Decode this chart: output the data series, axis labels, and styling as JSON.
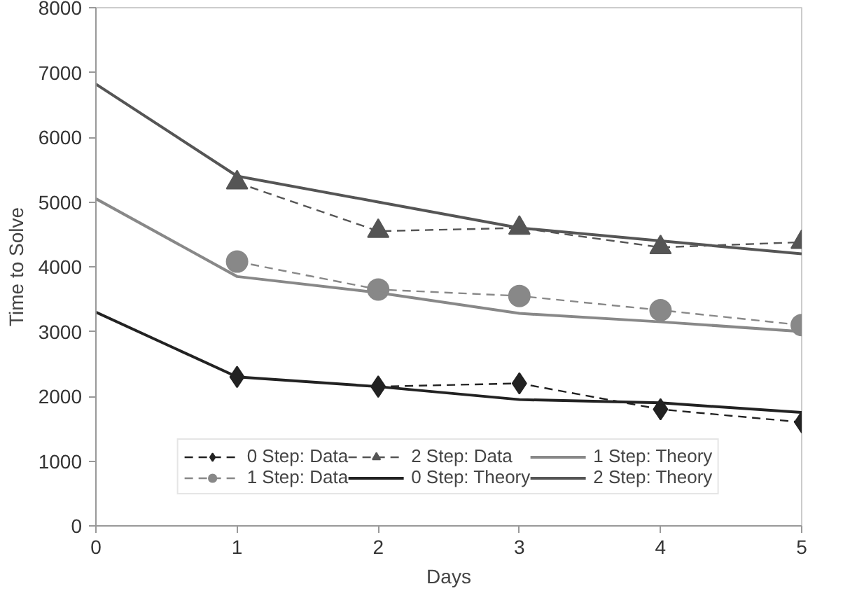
{
  "chart_data": {
    "type": "line",
    "xlabel": "Days",
    "ylabel": "Time to Solve",
    "xlim": [
      0,
      5
    ],
    "xticks": [
      0,
      1,
      2,
      3,
      4,
      5
    ],
    "ylim": [
      0,
      8000
    ],
    "yticks": [
      0,
      1000,
      2000,
      3000,
      4000,
      5000,
      6000,
      7000,
      8000
    ],
    "grid": false,
    "legend": "bottom",
    "series": [
      {
        "name": "0 Step: Data",
        "color": "#222222",
        "marker": "diamond",
        "line_style": "dashed",
        "x": [
          1,
          2,
          3,
          4,
          5
        ],
        "values": [
          2300,
          2150,
          2200,
          1800,
          1600
        ]
      },
      {
        "name": "1 Step: Data",
        "color": "#888888",
        "marker": "circle",
        "line_style": "dashed",
        "x": [
          1,
          2,
          3,
          4,
          5
        ],
        "values": [
          4080,
          3650,
          3550,
          3330,
          3100
        ]
      },
      {
        "name": "2 Step: Data",
        "color": "#555555",
        "marker": "triangle",
        "line_style": "dashed",
        "x": [
          1,
          2,
          3,
          4,
          5
        ],
        "values": [
          5300,
          4550,
          4600,
          4300,
          4380
        ]
      },
      {
        "name": "0 Step: Theory",
        "color": "#222222",
        "marker": "none",
        "line_style": "solid",
        "x": [
          0,
          1,
          2,
          3,
          4,
          5
        ],
        "values": [
          3300,
          2300,
          2150,
          1950,
          1900,
          1750
        ]
      },
      {
        "name": "1 Step: Theory",
        "color": "#888888",
        "marker": "none",
        "line_style": "solid",
        "x": [
          0,
          1,
          2,
          3,
          4,
          5
        ],
        "values": [
          5050,
          3850,
          3600,
          3280,
          3150,
          3000
        ]
      },
      {
        "name": "2 Step: Theory",
        "color": "#555555",
        "marker": "none",
        "line_style": "solid",
        "x": [
          0,
          1,
          2,
          3,
          4,
          5
        ],
        "values": [
          6820,
          5400,
          5000,
          4600,
          4400,
          4200
        ]
      }
    ]
  }
}
